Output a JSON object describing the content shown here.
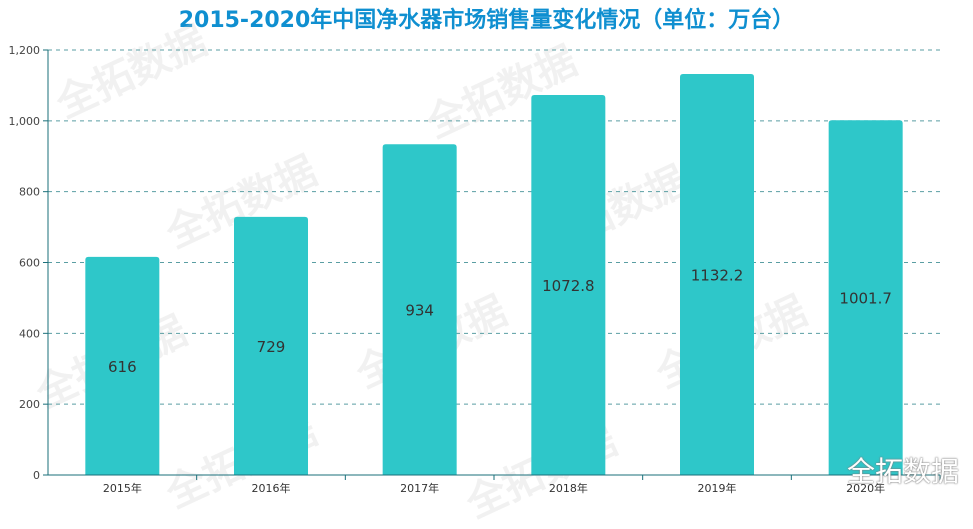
{
  "chart_data": {
    "type": "bar",
    "title": "2015-2020年中国净水器市场销售量变化情况（单位：万台）",
    "categories": [
      "2015年",
      "2016年",
      "2017年",
      "2018年",
      "2019年",
      "2020年"
    ],
    "values": [
      616,
      729,
      934,
      1072.8,
      1132.2,
      1001.7
    ],
    "data_labels": [
      "616",
      "729",
      "934",
      "1072.8",
      "1132.2",
      "1001.7"
    ],
    "yticks": [
      0,
      200,
      400,
      600,
      800,
      1000,
      1200
    ],
    "ytick_labels": [
      "0",
      "200",
      "400",
      "600",
      "800",
      "1,000",
      "1,200"
    ],
    "ylim": [
      0,
      1200
    ],
    "xlabel": "",
    "ylabel": "",
    "grid": true,
    "bar_color": "#2ec7c9"
  },
  "watermark": "全拓数据",
  "logo": "全拓数据"
}
